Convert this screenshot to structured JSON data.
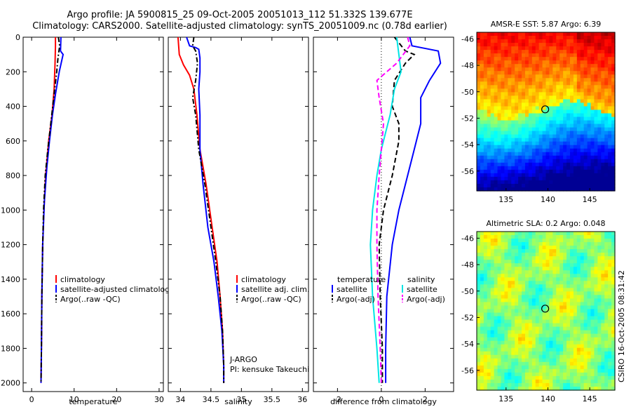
{
  "figure": {
    "title_line1": "Argo profile: JA 5900815_25 09-Oct-2005 20051013_112 51.332S 139.677E",
    "title_line2": "Climatology: CARS2000. Satellite-adjusted climatology: synTS_20051009.nc (0.78d earlier)",
    "side_credit": "CSIRO 16-Oct-2005 08:31:42"
  },
  "chart_data": [
    {
      "type": "line",
      "id": "temperature",
      "title": "",
      "xlabel": "temperature",
      "ylabel": "",
      "xlim": [
        -2,
        31
      ],
      "ylim": [
        2050,
        0
      ],
      "xticks": [
        0,
        10,
        20,
        30
      ],
      "yticks": [
        0,
        200,
        400,
        600,
        800,
        1000,
        1200,
        1400,
        1600,
        1800,
        2000
      ],
      "series": [
        {
          "name": "climatology",
          "color": "#ff0000",
          "style": "solid",
          "points": [
            [
              5.6,
              0
            ],
            [
              5.6,
              50
            ],
            [
              5.5,
              150
            ],
            [
              5.3,
              300
            ],
            [
              4.8,
              450
            ],
            [
              4.0,
              600
            ],
            [
              3.3,
              800
            ],
            [
              2.9,
              1000
            ],
            [
              2.6,
              1200
            ],
            [
              2.4,
              1500
            ],
            [
              2.3,
              1800
            ],
            [
              2.2,
              2000
            ]
          ]
        },
        {
          "name": "satellite-adjusted climatology",
          "color": "#0000ff",
          "style": "solid",
          "points": [
            [
              6.9,
              0
            ],
            [
              6.8,
              80
            ],
            [
              7.4,
              100
            ],
            [
              6.5,
              200
            ],
            [
              5.6,
              330
            ],
            [
              4.9,
              450
            ],
            [
              4.2,
              600
            ],
            [
              3.6,
              750
            ],
            [
              3.0,
              950
            ],
            [
              2.6,
              1200
            ],
            [
              2.4,
              1500
            ],
            [
              2.3,
              1800
            ],
            [
              2.2,
              2000
            ]
          ]
        },
        {
          "name": "Argo(..raw -QC)",
          "color": "#000000",
          "style": "dashdot",
          "points": [
            [
              6.3,
              0
            ],
            [
              6.6,
              50
            ],
            [
              6.2,
              120
            ],
            [
              5.9,
              200
            ],
            [
              5.2,
              350
            ],
            [
              4.5,
              500
            ],
            [
              3.8,
              650
            ],
            [
              3.2,
              800
            ],
            [
              2.8,
              1000
            ],
            [
              2.6,
              1200
            ],
            [
              2.4,
              1500
            ],
            [
              2.3,
              1800
            ],
            [
              2.2,
              2000
            ]
          ]
        }
      ],
      "legend": {
        "placement": "lower-right",
        "entries": [
          "climatology",
          "satellite-adjusted climatology",
          "Argo(..raw -QC)"
        ]
      }
    },
    {
      "type": "line",
      "id": "salinity",
      "title": "",
      "xlabel": "salinity",
      "ylabel": "",
      "xlim": [
        33.8,
        36.1
      ],
      "ylim": [
        2050,
        0
      ],
      "xticks": [
        34,
        34.5,
        35,
        35.5,
        36
      ],
      "yticks": [
        0,
        200,
        400,
        600,
        800,
        1000,
        1200,
        1400,
        1600,
        1800,
        2000
      ],
      "series": [
        {
          "name": "climatology",
          "color": "#ff0000",
          "style": "solid",
          "points": [
            [
              33.96,
              0
            ],
            [
              33.98,
              100
            ],
            [
              34.05,
              160
            ],
            [
              34.15,
              220
            ],
            [
              34.22,
              300
            ],
            [
              34.27,
              450
            ],
            [
              34.32,
              650
            ],
            [
              34.42,
              850
            ],
            [
              34.52,
              1100
            ],
            [
              34.6,
              1300
            ],
            [
              34.65,
              1500
            ],
            [
              34.69,
              1700
            ],
            [
              34.71,
              1900
            ],
            [
              34.71,
              2000
            ]
          ]
        },
        {
          "name": "satellite adj. clim.",
          "color": "#0000ff",
          "style": "solid",
          "points": [
            [
              34.1,
              0
            ],
            [
              34.15,
              50
            ],
            [
              34.25,
              60
            ],
            [
              34.3,
              70
            ],
            [
              34.32,
              120
            ],
            [
              34.32,
              200
            ],
            [
              34.3,
              300
            ],
            [
              34.32,
              450
            ],
            [
              34.32,
              650
            ],
            [
              34.37,
              850
            ],
            [
              34.45,
              1100
            ],
            [
              34.55,
              1300
            ],
            [
              34.62,
              1500
            ],
            [
              34.68,
              1700
            ],
            [
              34.71,
              1900
            ],
            [
              34.71,
              2000
            ]
          ]
        },
        {
          "name": "Argo(..raw -QC)",
          "color": "#000000",
          "style": "dashdot",
          "points": [
            [
              34.22,
              0
            ],
            [
              34.2,
              50
            ],
            [
              34.25,
              80
            ],
            [
              34.28,
              150
            ],
            [
              34.25,
              250
            ],
            [
              34.2,
              350
            ],
            [
              34.25,
              450
            ],
            [
              34.3,
              650
            ],
            [
              34.4,
              850
            ],
            [
              34.5,
              1100
            ],
            [
              34.58,
              1300
            ],
            [
              34.65,
              1500
            ],
            [
              34.69,
              1700
            ],
            [
              34.71,
              1900
            ],
            [
              34.71,
              2000
            ]
          ]
        }
      ],
      "legend": {
        "placement": "lower-right",
        "entries": [
          "climatology",
          "satellite adj. clim.",
          "Argo(..raw -QC)"
        ]
      },
      "annotations": [
        "J-ARGO",
        "PI: kensuke Takeuchi"
      ]
    },
    {
      "type": "line",
      "id": "difference",
      "title": "",
      "xlabel": "difference from climatology",
      "ylabel": "",
      "xlim": [
        -3.1,
        3.3
      ],
      "ylim": [
        2050,
        0
      ],
      "xticks": [
        -2,
        0,
        2
      ],
      "yticks": [
        0,
        200,
        400,
        600,
        800,
        1000,
        1200,
        1400,
        1600,
        1800,
        2000
      ],
      "series": [
        {
          "name": "temperature satellite",
          "color": "#0000ff",
          "style": "solid",
          "points": [
            [
              1.3,
              0
            ],
            [
              1.4,
              50
            ],
            [
              2.6,
              80
            ],
            [
              2.7,
              150
            ],
            [
              2.2,
              250
            ],
            [
              1.8,
              350
            ],
            [
              1.8,
              500
            ],
            [
              1.5,
              650
            ],
            [
              1.2,
              800
            ],
            [
              0.8,
              1000
            ],
            [
              0.5,
              1200
            ],
            [
              0.25,
              1500
            ],
            [
              0.2,
              1800
            ],
            [
              0.2,
              2000
            ]
          ]
        },
        {
          "name": "temperature Argo(-adj)",
          "color": "#000000",
          "style": "dashed",
          "points": [
            [
              0.6,
              0
            ],
            [
              1.1,
              80
            ],
            [
              1.5,
              100
            ],
            [
              1.1,
              150
            ],
            [
              0.6,
              250
            ],
            [
              0.5,
              400
            ],
            [
              0.8,
              500
            ],
            [
              0.8,
              600
            ],
            [
              0.5,
              800
            ],
            [
              0.1,
              1000
            ],
            [
              -0.1,
              1200
            ],
            [
              -0.05,
              1500
            ],
            [
              0.05,
              1800
            ],
            [
              0.05,
              2000
            ]
          ]
        },
        {
          "name": "salinity satellite",
          "color": "#00e5e5",
          "style": "solid",
          "points": [
            [
              0.7,
              0
            ],
            [
              0.8,
              100
            ],
            [
              0.9,
              200
            ],
            [
              0.6,
              300
            ],
            [
              0.4,
              450
            ],
            [
              0.2,
              550
            ],
            [
              0.0,
              650
            ],
            [
              -0.2,
              800
            ],
            [
              -0.4,
              1000
            ],
            [
              -0.5,
              1200
            ],
            [
              -0.4,
              1500
            ],
            [
              -0.2,
              1800
            ],
            [
              -0.1,
              2000
            ]
          ]
        },
        {
          "name": "salinity Argo(-adj)",
          "color": "#ff00ff",
          "style": "dashed",
          "points": [
            [
              1.2,
              0
            ],
            [
              1.3,
              50
            ],
            [
              0.7,
              150
            ],
            [
              -0.2,
              250
            ],
            [
              -0.1,
              350
            ],
            [
              0.1,
              500
            ],
            [
              0.0,
              650
            ],
            [
              -0.1,
              800
            ],
            [
              -0.2,
              1000
            ],
            [
              -0.2,
              1200
            ],
            [
              -0.15,
              1500
            ],
            [
              -0.05,
              1800
            ],
            [
              0.0,
              2000
            ]
          ]
        }
      ],
      "legend": {
        "placement": "lower-center",
        "headers": [
          "temperature",
          "salinity"
        ],
        "entries": [
          "satellite",
          "Argo(-adj)",
          "satellite",
          "Argo(-adj)"
        ]
      }
    },
    {
      "type": "heatmap",
      "id": "sst_map",
      "title": "AMSR-E SST: 5.87 Argo: 6.39",
      "xlim": [
        131.5,
        148
      ],
      "ylim": [
        -57.5,
        -45.5
      ],
      "xticks": [
        135,
        140,
        145
      ],
      "yticks": [
        -46,
        -48,
        -50,
        -52,
        -54,
        -56
      ],
      "marker": {
        "lon": 139.677,
        "lat": -51.332
      },
      "colormap": "jet"
    },
    {
      "type": "heatmap",
      "id": "sla_map",
      "title": "Altimetric SLA: 0.2 Argo: 0.048",
      "xlim": [
        131.5,
        148
      ],
      "ylim": [
        -57.5,
        -45.5
      ],
      "xticks": [
        135,
        140,
        145
      ],
      "yticks": [
        -46,
        -48,
        -50,
        -52,
        -54,
        -56
      ],
      "marker": {
        "lon": 139.677,
        "lat": -51.332
      },
      "colormap": "jet"
    }
  ]
}
